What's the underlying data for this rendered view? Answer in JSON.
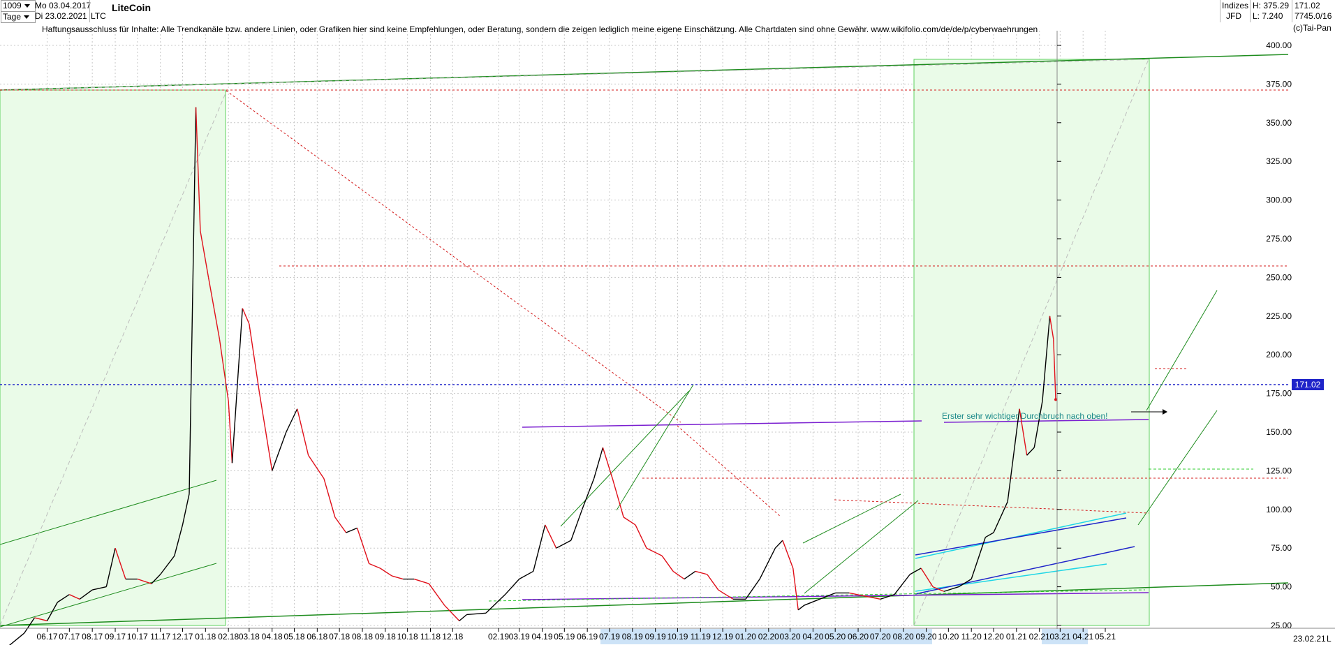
{
  "header": {
    "bar_count": "1009",
    "interval": "Tage",
    "date_from": "Mo 03.04.2017",
    "date_to": "Di 23.02.2021",
    "symbol_code": "LTC",
    "instrument_name": "LiteCoin",
    "category": "Indizes",
    "source": "JFD",
    "high_label": "H: 375.29",
    "low_label": "L: 7.240",
    "last_price": "171.02",
    "last_volume": "7745.0/16",
    "copyright": "(c)Tai-Pan"
  },
  "disclaimer": "Haftungsausschluss für Inhalte: Alle Trendkanäle bzw. andere Linien, oder Grafiken hier sind keine Empfehlungen, oder Beratung, sondern die zeigen lediglich meine eigene Einschätzung. Alle Chartdaten sind ohne Gewähr.  www.wikifolio.com/de/de/p/cyberwaehrungen",
  "annotation": "Erster sehr wichtiger Durchbruch nach oben!",
  "price_tag": "171.02",
  "date_tag": "23.02.21",
  "corner_label": "L",
  "colors": {
    "candle_up": "#000000",
    "candle_down": "#e0101a",
    "channel": "#1e8c1e",
    "highlight_fill": "#eafbe8",
    "highlight_border": "#5cd05c",
    "resistance": "#d41c1c",
    "current_price": "#1f24c9",
    "purple": "#7a1fd0",
    "cyan": "#1fd6e6",
    "blue": "#1f24c9"
  },
  "chart_data": {
    "type": "candlestick",
    "title": "LiteCoin",
    "x_ticks": [
      "06.17",
      "07.17",
      "08.17",
      "09.17",
      "10.17",
      "11.17",
      "12.17",
      "01.18",
      "02.18",
      "03.18",
      "04.18",
      "05.18",
      "06.18",
      "07.18",
      "08.18",
      "09.18",
      "10.18",
      "11.18",
      "12.18",
      "02.19",
      "03.19",
      "04.19",
      "05.19",
      "06.19",
      "07.19",
      "08.19",
      "09.19",
      "10.19",
      "11.19",
      "12.19",
      "01.20",
      "02.20",
      "03.20",
      "04.20",
      "05.20",
      "06.20",
      "07.20",
      "08.20",
      "09.20",
      "10.20",
      "11.20",
      "12.20",
      "01.21",
      "02.21",
      "03.21",
      "04.21",
      "05.21"
    ],
    "y_ticks": [
      "25.00",
      "50.00",
      "75.00",
      "100.00",
      "125.00",
      "150.00",
      "175.00",
      "200.00",
      "225.00",
      "250.00",
      "275.00",
      "300.00",
      "325.00",
      "350.00",
      "375.00",
      "400.00"
    ],
    "ylim": [
      12,
      412
    ],
    "log_scale": false,
    "grid": true,
    "path_points": [
      [
        "2017-04-03",
        9
      ],
      [
        "2017-05-01",
        20
      ],
      [
        "2017-05-15",
        30
      ],
      [
        "2017-06-01",
        28
      ],
      [
        "2017-06-15",
        40
      ],
      [
        "2017-07-01",
        45
      ],
      [
        "2017-07-15",
        42
      ],
      [
        "2017-08-01",
        48
      ],
      [
        "2017-08-20",
        50
      ],
      [
        "2017-09-01",
        75
      ],
      [
        "2017-09-15",
        55
      ],
      [
        "2017-10-01",
        55
      ],
      [
        "2017-10-20",
        52
      ],
      [
        "2017-11-01",
        58
      ],
      [
        "2017-11-20",
        70
      ],
      [
        "2017-12-01",
        90
      ],
      [
        "2017-12-10",
        110
      ],
      [
        "2017-12-19",
        360
      ],
      [
        "2017-12-25",
        280
      ],
      [
        "2018-01-05",
        250
      ],
      [
        "2018-01-20",
        210
      ],
      [
        "2018-02-01",
        170
      ],
      [
        "2018-02-06",
        130
      ],
      [
        "2018-02-20",
        230
      ],
      [
        "2018-03-01",
        220
      ],
      [
        "2018-03-15",
        175
      ],
      [
        "2018-04-01",
        125
      ],
      [
        "2018-04-20",
        150
      ],
      [
        "2018-05-05",
        165
      ],
      [
        "2018-05-20",
        135
      ],
      [
        "2018-06-10",
        120
      ],
      [
        "2018-06-25",
        95
      ],
      [
        "2018-07-10",
        85
      ],
      [
        "2018-07-25",
        88
      ],
      [
        "2018-08-10",
        65
      ],
      [
        "2018-08-25",
        62
      ],
      [
        "2018-09-10",
        57
      ],
      [
        "2018-09-25",
        55
      ],
      [
        "2018-10-10",
        55
      ],
      [
        "2018-10-30",
        52
      ],
      [
        "2018-11-20",
        38
      ],
      [
        "2018-12-10",
        28
      ],
      [
        "2018-12-20",
        32
      ],
      [
        "2019-01-15",
        33
      ],
      [
        "2019-02-10",
        45
      ],
      [
        "2019-03-01",
        55
      ],
      [
        "2019-03-20",
        60
      ],
      [
        "2019-04-05",
        90
      ],
      [
        "2019-04-20",
        75
      ],
      [
        "2019-05-10",
        80
      ],
      [
        "2019-05-25",
        100
      ],
      [
        "2019-06-10",
        120
      ],
      [
        "2019-06-22",
        140
      ],
      [
        "2019-07-05",
        120
      ],
      [
        "2019-07-20",
        95
      ],
      [
        "2019-08-05",
        90
      ],
      [
        "2019-08-20",
        75
      ],
      [
        "2019-09-10",
        70
      ],
      [
        "2019-09-25",
        60
      ],
      [
        "2019-10-10",
        55
      ],
      [
        "2019-10-25",
        60
      ],
      [
        "2019-11-10",
        58
      ],
      [
        "2019-11-25",
        48
      ],
      [
        "2019-12-15",
        42
      ],
      [
        "2020-01-01",
        42
      ],
      [
        "2020-01-20",
        55
      ],
      [
        "2020-02-10",
        75
      ],
      [
        "2020-02-20",
        80
      ],
      [
        "2020-03-05",
        62
      ],
      [
        "2020-03-12",
        35
      ],
      [
        "2020-03-20",
        38
      ],
      [
        "2020-04-10",
        42
      ],
      [
        "2020-05-01",
        46
      ],
      [
        "2020-05-20",
        46
      ],
      [
        "2020-06-10",
        44
      ],
      [
        "2020-07-01",
        42
      ],
      [
        "2020-07-20",
        45
      ],
      [
        "2020-08-10",
        58
      ],
      [
        "2020-08-25",
        62
      ],
      [
        "2020-09-10",
        50
      ],
      [
        "2020-09-25",
        47
      ],
      [
        "2020-10-15",
        50
      ],
      [
        "2020-11-01",
        55
      ],
      [
        "2020-11-20",
        82
      ],
      [
        "2020-12-01",
        85
      ],
      [
        "2020-12-20",
        105
      ],
      [
        "2021-01-05",
        165
      ],
      [
        "2021-01-15",
        135
      ],
      [
        "2021-01-25",
        140
      ],
      [
        "2021-02-05",
        170
      ],
      [
        "2021-02-15",
        225
      ],
      [
        "2021-02-20",
        210
      ],
      [
        "2021-02-23",
        171.02
      ]
    ]
  }
}
